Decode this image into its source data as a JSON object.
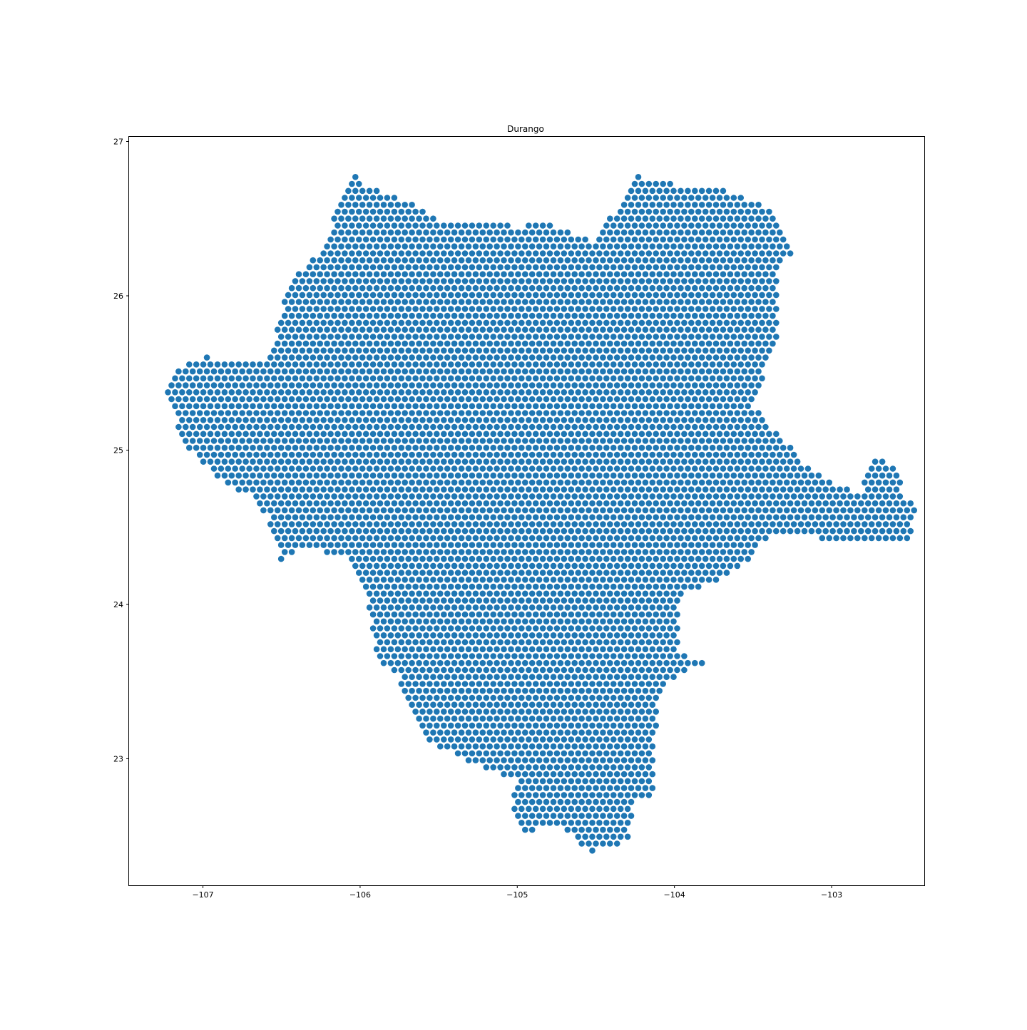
{
  "chart_data": {
    "type": "scatter",
    "title": "Durango",
    "xlabel": "",
    "ylabel": "",
    "xlim": [
      -107.47,
      -102.41
    ],
    "ylim": [
      22.18,
      27.03
    ],
    "grid": false,
    "legend": "none",
    "marker_color": "#1f77b4",
    "grid_spacing": 0.045,
    "xticks": [
      {
        "value": -107,
        "label": "−107"
      },
      {
        "value": -106,
        "label": "−106"
      },
      {
        "value": -105,
        "label": "−105"
      },
      {
        "value": -104,
        "label": "−104"
      },
      {
        "value": -103,
        "label": "−103"
      }
    ],
    "yticks": [
      {
        "value": 23,
        "label": "23"
      },
      {
        "value": 24,
        "label": "24"
      },
      {
        "value": 25,
        "label": "25"
      },
      {
        "value": 26,
        "label": "26"
      },
      {
        "value": 27,
        "label": "27"
      }
    ],
    "boundary": [
      [
        -107.22,
        25.42
      ],
      [
        -107.14,
        25.54
      ],
      [
        -106.97,
        25.62
      ],
      [
        -106.92,
        25.56
      ],
      [
        -106.62,
        25.56
      ],
      [
        -106.55,
        25.64
      ],
      [
        -106.5,
        25.92
      ],
      [
        -106.4,
        26.15
      ],
      [
        -106.22,
        26.32
      ],
      [
        -106.18,
        26.48
      ],
      [
        -106.05,
        26.8
      ],
      [
        -105.97,
        26.72
      ],
      [
        -105.82,
        26.66
      ],
      [
        -105.62,
        26.58
      ],
      [
        -105.53,
        26.5
      ],
      [
        -105.3,
        26.46
      ],
      [
        -105.1,
        26.47
      ],
      [
        -104.99,
        26.44
      ],
      [
        -104.87,
        26.48
      ],
      [
        -104.72,
        26.44
      ],
      [
        -104.53,
        26.35
      ],
      [
        -104.38,
        26.55
      ],
      [
        -104.23,
        26.78
      ],
      [
        -104.05,
        26.73
      ],
      [
        -103.73,
        26.7
      ],
      [
        -103.55,
        26.63
      ],
      [
        -103.38,
        26.56
      ],
      [
        -103.3,
        26.38
      ],
      [
        -103.25,
        26.28
      ],
      [
        -103.35,
        26.2
      ],
      [
        -103.35,
        25.65
      ],
      [
        -103.45,
        25.52
      ],
      [
        -103.43,
        25.42
      ],
      [
        -103.5,
        25.3
      ],
      [
        -103.38,
        25.13
      ],
      [
        -103.28,
        25.04
      ],
      [
        -103.13,
        24.86
      ],
      [
        -102.95,
        24.77
      ],
      [
        -102.82,
        24.72
      ],
      [
        -102.72,
        24.98
      ],
      [
        -102.6,
        24.9
      ],
      [
        -102.53,
        24.7
      ],
      [
        -102.47,
        24.62
      ],
      [
        -102.48,
        24.42
      ],
      [
        -102.85,
        24.42
      ],
      [
        -103.1,
        24.43
      ],
      [
        -103.38,
        24.47
      ],
      [
        -103.52,
        24.3
      ],
      [
        -103.67,
        24.18
      ],
      [
        -103.82,
        24.12
      ],
      [
        -103.98,
        24.06
      ],
      [
        -103.98,
        23.68
      ],
      [
        -103.8,
        23.62
      ],
      [
        -103.98,
        23.55
      ],
      [
        -104.1,
        23.42
      ],
      [
        -104.13,
        23.0
      ],
      [
        -104.13,
        22.78
      ],
      [
        -104.27,
        22.71
      ],
      [
        -104.28,
        22.48
      ],
      [
        -104.42,
        22.42
      ],
      [
        -104.53,
        22.4
      ],
      [
        -104.63,
        22.48
      ],
      [
        -104.73,
        22.58
      ],
      [
        -104.95,
        22.52
      ],
      [
        -105.05,
        22.68
      ],
      [
        -105.0,
        22.86
      ],
      [
        -105.35,
        23.0
      ],
      [
        -105.58,
        23.12
      ],
      [
        -105.7,
        23.35
      ],
      [
        -105.76,
        23.56
      ],
      [
        -105.9,
        23.63
      ],
      [
        -105.93,
        23.88
      ],
      [
        -105.95,
        24.08
      ],
      [
        -106.05,
        24.28
      ],
      [
        -106.35,
        24.38
      ],
      [
        -106.5,
        24.28
      ],
      [
        -106.58,
        24.55
      ],
      [
        -106.7,
        24.7
      ],
      [
        -106.9,
        24.82
      ],
      [
        -107.05,
        24.98
      ],
      [
        -107.14,
        25.05
      ],
      [
        -107.18,
        25.3
      ],
      [
        -107.24,
        25.37
      ]
    ]
  }
}
